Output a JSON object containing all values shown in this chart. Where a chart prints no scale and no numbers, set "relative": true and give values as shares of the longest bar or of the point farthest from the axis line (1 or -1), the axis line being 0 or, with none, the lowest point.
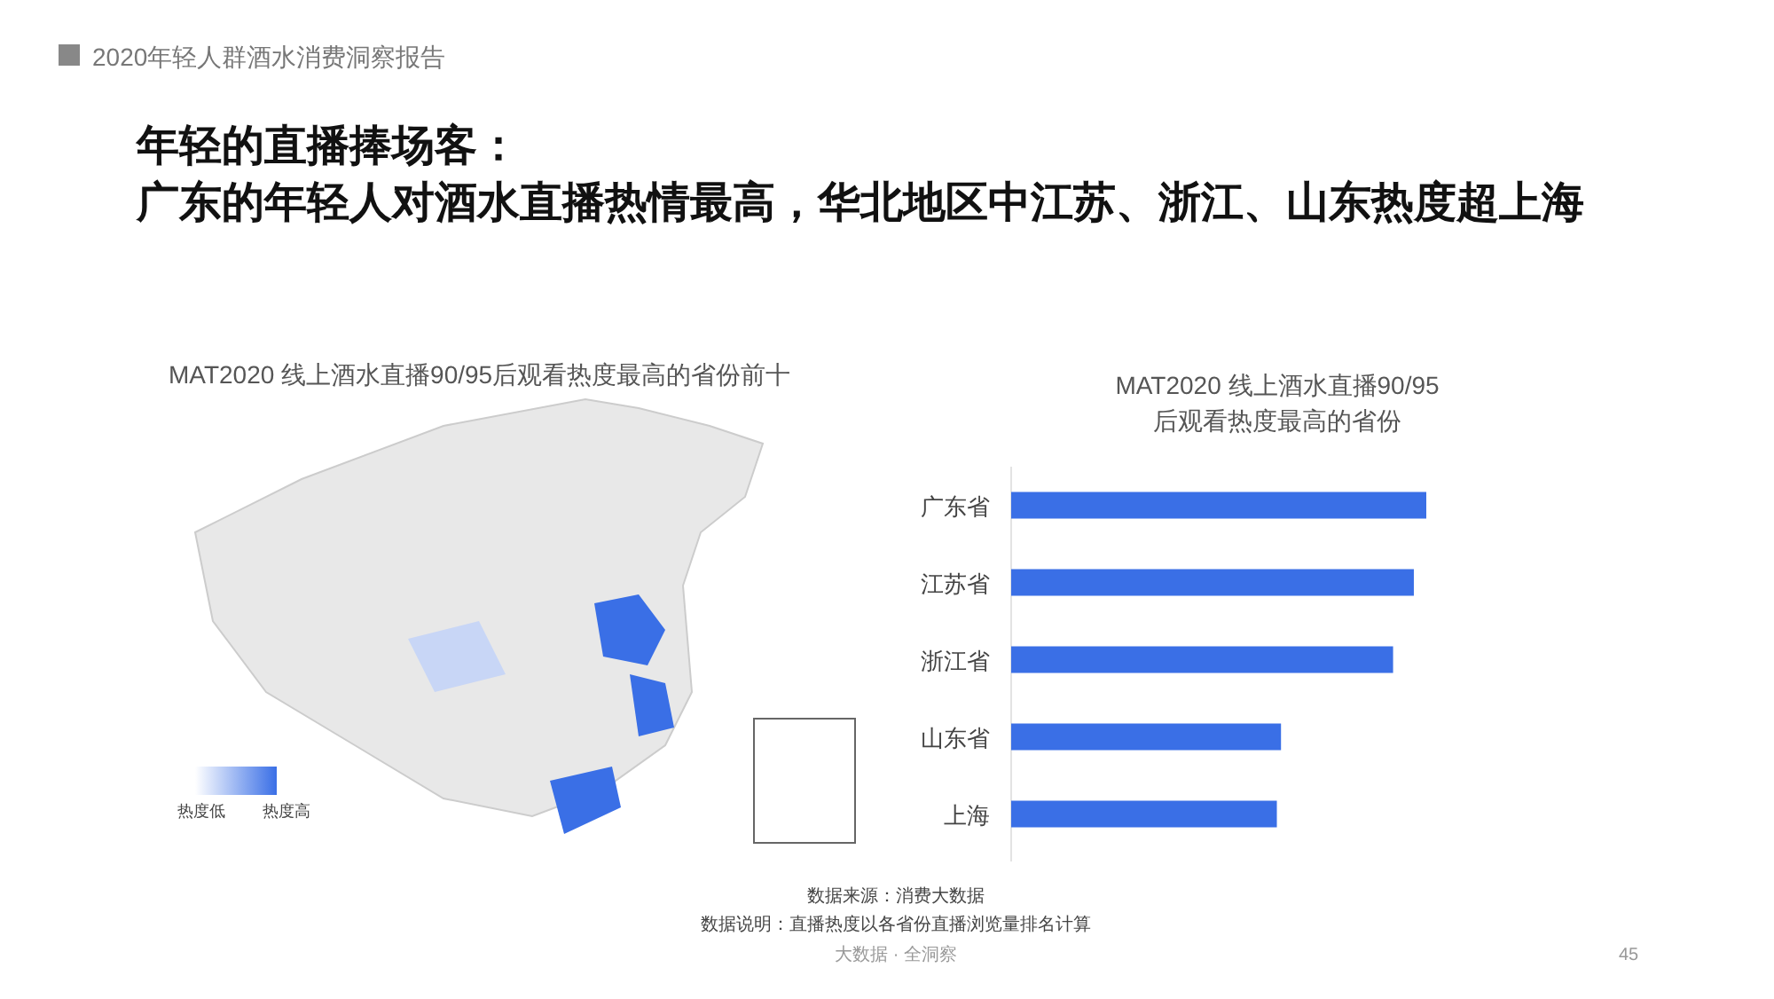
{
  "chart_data": [
    {
      "type": "other",
      "title": "年轻的直播捧场客：",
      "subtitle": "广东的年轻人对酒水直播热情最高，华北地区中江苏、浙江、山东热度超上海",
      "annotations": [
        "2020年轻人群酒水消费洞察报告",
        "数据来源：消费大数据",
        "数据说明：直播热度以各省份直播浏览量排名计算",
        "大数据 · 全洞察",
        "45"
      ]
    },
    {
      "type": "other",
      "title": "MAT2020 线上酒水直播90/95后观看热度最高的省份前十",
      "annotations": [
        "热度低",
        "热度高"
      ]
    },
    {
      "type": "bar",
      "orientation": "horizontal",
      "relative": true,
      "title": "MAT2020 线上酒水直播90/95后观看热度最高的省份",
      "categories": [
        "广东省",
        "江苏省",
        "浙江省",
        "山东省",
        "上海"
      ],
      "values": [
        1,
        0.97,
        0.92,
        0.65,
        0.64
      ],
      "color": "#3a6fe6"
    }
  ]
}
